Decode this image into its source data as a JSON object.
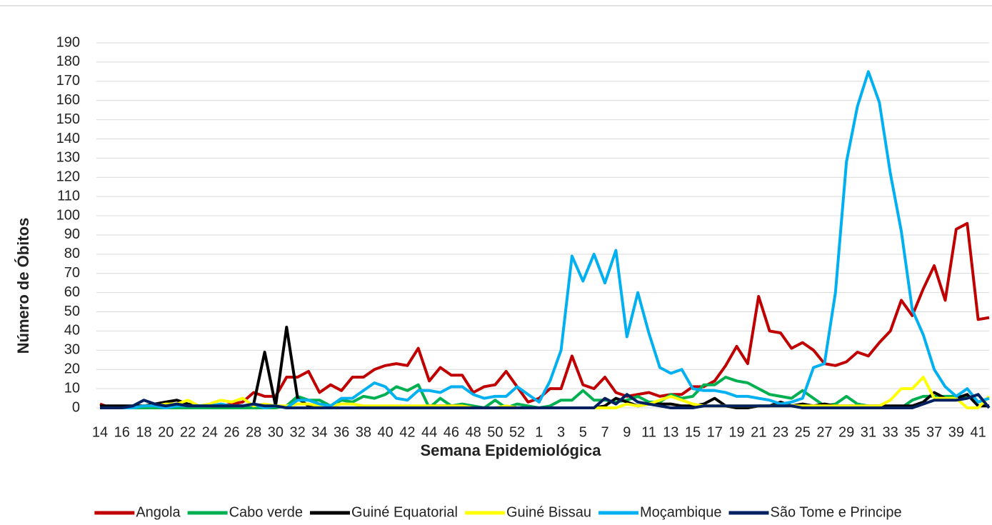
{
  "chart_data": {
    "type": "line",
    "y_label": "Número de Óbitos",
    "x_label": "Semana Epidemiológica",
    "categories": [
      "14",
      null,
      "16",
      null,
      "18",
      null,
      "20",
      null,
      "22",
      null,
      "24",
      null,
      "26",
      null,
      "28",
      null,
      "30",
      null,
      "32",
      null,
      "34",
      null,
      "36",
      null,
      "38",
      null,
      "40",
      null,
      "42",
      null,
      "44",
      null,
      "46",
      null,
      "48",
      null,
      "50",
      null,
      "52",
      null,
      "1",
      null,
      "3",
      null,
      "5",
      null,
      "7",
      null,
      "9",
      null,
      "11",
      null,
      "13",
      null,
      "15",
      null,
      "17",
      null,
      "19",
      null,
      "21",
      null,
      "23",
      null,
      "25",
      null,
      "27",
      null,
      "29",
      null,
      "31",
      null,
      "33",
      null,
      "35",
      null,
      "37",
      null,
      "39",
      null,
      "41",
      null
    ],
    "series": [
      {
        "name": "Angola",
        "color": "#c00000",
        "values": [
          2,
          0,
          0,
          0,
          1,
          1,
          1,
          2,
          1,
          1,
          1,
          1,
          2,
          3,
          8,
          6,
          6,
          16,
          16,
          19,
          8,
          12,
          9,
          16,
          16,
          20,
          22,
          23,
          22,
          31,
          14,
          21,
          17,
          17,
          8,
          11,
          12,
          19,
          11,
          3,
          5,
          10,
          10,
          27,
          12,
          10,
          16,
          8,
          6,
          7,
          8,
          6,
          7,
          7,
          11,
          11,
          14,
          22,
          32,
          23,
          58,
          40,
          39,
          31,
          34,
          30,
          23,
          22,
          24,
          29,
          27,
          34,
          40,
          56,
          48,
          62,
          74,
          56,
          93,
          96,
          46,
          47
        ]
      },
      {
        "name": "Cabo verde",
        "color": "#00b050",
        "values": [
          0,
          0,
          0,
          0,
          0,
          0,
          0,
          0,
          0,
          0,
          0,
          0,
          0,
          0,
          0,
          0,
          0,
          1,
          6,
          4,
          4,
          1,
          4,
          3,
          6,
          5,
          7,
          11,
          9,
          12,
          0,
          5,
          1,
          2,
          1,
          0,
          4,
          0,
          2,
          1,
          0,
          1,
          4,
          4,
          9,
          4,
          4,
          3,
          4,
          6,
          3,
          3,
          7,
          5,
          6,
          12,
          12,
          16,
          14,
          13,
          10,
          7,
          6,
          5,
          9,
          5,
          1,
          2,
          6,
          2,
          1,
          0,
          0,
          0,
          4,
          6,
          6,
          6,
          6,
          6,
          3,
          5
        ]
      },
      {
        "name": "Guiné Equatorial",
        "color": "#000000",
        "values": [
          1,
          1,
          1,
          1,
          1,
          2,
          3,
          4,
          2,
          1,
          1,
          1,
          1,
          1,
          2,
          29,
          1,
          42,
          5,
          1,
          0,
          0,
          0,
          0,
          0,
          0,
          0,
          0,
          0,
          0,
          1,
          1,
          1,
          1,
          0,
          0,
          0,
          0,
          0,
          0,
          0,
          0,
          0,
          0,
          0,
          0,
          1,
          5,
          3,
          1,
          2,
          2,
          2,
          1,
          1,
          2,
          5,
          1,
          0,
          0,
          1,
          1,
          3,
          1,
          2,
          1,
          2,
          1,
          1,
          1,
          1,
          1,
          1,
          1,
          1,
          3,
          8,
          5,
          5,
          7,
          1,
          1
        ]
      },
      {
        "name": "Guiné Bissau",
        "color": "#ffff00",
        "values": [
          0,
          0,
          0,
          0,
          1,
          1,
          2,
          2,
          4,
          1,
          2,
          4,
          3,
          5,
          1,
          2,
          1,
          1,
          2,
          2,
          1,
          1,
          2,
          2,
          1,
          1,
          1,
          1,
          1,
          1,
          1,
          1,
          1,
          1,
          0,
          0,
          0,
          1,
          0,
          0,
          0,
          0,
          0,
          0,
          0,
          0,
          0,
          0,
          2,
          1,
          2,
          4,
          6,
          4,
          2,
          1,
          1,
          1,
          1,
          1,
          1,
          1,
          1,
          1,
          1,
          1,
          1,
          1,
          1,
          1,
          1,
          1,
          4,
          10,
          10,
          16,
          5,
          5,
          5,
          0,
          0,
          6
        ]
      },
      {
        "name": "Moçambique",
        "color": "#00b0f0",
        "values": [
          0,
          0,
          0,
          0,
          1,
          1,
          0,
          1,
          1,
          1,
          1,
          2,
          1,
          1,
          2,
          0,
          1,
          0,
          4,
          4,
          2,
          1,
          5,
          5,
          9,
          13,
          11,
          5,
          4,
          9,
          9,
          8,
          11,
          11,
          7,
          5,
          6,
          6,
          11,
          7,
          3,
          14,
          30,
          79,
          66,
          80,
          65,
          82,
          37,
          60,
          39,
          21,
          18,
          20,
          10,
          9,
          9,
          8,
          6,
          6,
          5,
          4,
          2,
          3,
          5,
          21,
          23,
          60,
          128,
          157,
          175,
          159,
          122,
          92,
          51,
          38,
          20,
          11,
          6,
          10,
          3,
          5
        ]
      },
      {
        "name": "São Tome e Principe",
        "color": "#002060",
        "values": [
          0,
          0,
          0,
          1,
          4,
          2,
          1,
          2,
          1,
          1,
          1,
          1,
          1,
          1,
          2,
          1,
          1,
          0,
          0,
          0,
          0,
          0,
          0,
          0,
          0,
          0,
          0,
          0,
          0,
          0,
          0,
          0,
          0,
          0,
          0,
          0,
          0,
          0,
          0,
          0,
          0,
          0,
          0,
          0,
          0,
          0,
          5,
          2,
          7,
          3,
          2,
          1,
          0,
          0,
          0,
          1,
          1,
          1,
          1,
          1,
          1,
          1,
          1,
          1,
          0,
          0,
          0,
          0,
          0,
          0,
          0,
          0,
          0,
          0,
          0,
          2,
          4,
          4,
          4,
          5,
          7,
          0
        ]
      }
    ],
    "ylim": [
      0,
      190
    ],
    "yticks": [
      0,
      10,
      20,
      30,
      40,
      50,
      60,
      70,
      80,
      90,
      100,
      110,
      120,
      130,
      140,
      150,
      160,
      170,
      180,
      190
    ],
    "grid": true,
    "legend": "bottom"
  }
}
